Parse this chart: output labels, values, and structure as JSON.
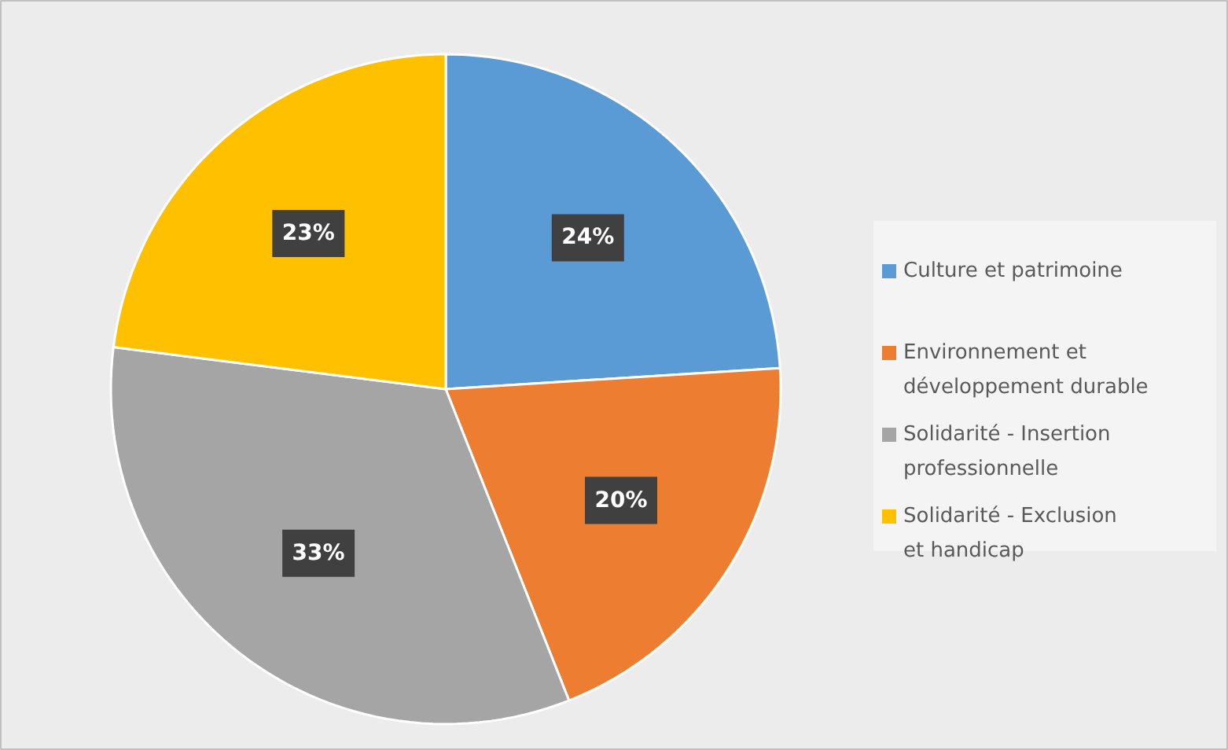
{
  "chart_data": {
    "type": "pie",
    "categories": [
      "Culture et patrimoine",
      "Environnement et développement durable",
      "Solidarité - Insertion professionnelle",
      "Solidarité - Exclusion et handicap"
    ],
    "values": [
      24,
      20,
      33,
      23
    ],
    "value_labels": [
      "24%",
      "20%",
      "33%",
      "23%"
    ],
    "colors": [
      "#5b9bd5",
      "#ed7d31",
      "#a5a5a5",
      "#ffc000"
    ],
    "legend": "right"
  }
}
